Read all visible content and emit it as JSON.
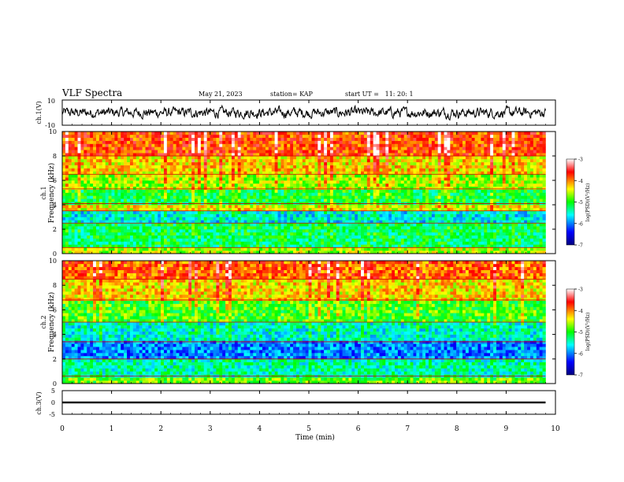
{
  "header": {
    "title": "VLF Spectra",
    "date": "May 21, 2023",
    "station": "station= KAP",
    "start_ut": "start UT =   11: 20: 1"
  },
  "chart_data": [
    {
      "type": "line",
      "panel": "ch1-waveform",
      "ylabel": "ch.1(V)",
      "ylim": [
        -10,
        10
      ],
      "yticks": [
        "10",
        "-10"
      ],
      "description_values": "noisy waveform oscillating roughly between -5 and +5 V over 0-9.8 min",
      "x_range": [
        0,
        9.8
      ]
    },
    {
      "type": "heatmap",
      "panel": "ch1-spectrogram",
      "ylabel": "ch.1 Frequency (kHz)",
      "ylim": [
        0,
        10
      ],
      "yticks": [
        "0",
        "2",
        "4",
        "6",
        "8",
        "10"
      ],
      "x_range": [
        0,
        9.8
      ],
      "colorbar": {
        "label": "log(PSD)(V²/Hz)",
        "range": [
          -7,
          -3
        ],
        "ticks": [
          "-3",
          "-4",
          "-5",
          "-6",
          "-7"
        ]
      },
      "bands_khz": [
        {
          "from": 0,
          "to": 0.5,
          "level": -4.6
        },
        {
          "from": 0.5,
          "to": 2.5,
          "level": -5.2
        },
        {
          "from": 2.5,
          "to": 3.5,
          "level": -5.6
        },
        {
          "from": 3.5,
          "to": 4.1,
          "level": -4.4
        },
        {
          "from": 4.1,
          "to": 5.3,
          "level": -5.1
        },
        {
          "from": 5.3,
          "to": 6.5,
          "level": -4.6
        },
        {
          "from": 6.5,
          "to": 8.0,
          "level": -4.3
        },
        {
          "from": 8.0,
          "to": 10.0,
          "level": -3.8
        }
      ]
    },
    {
      "type": "heatmap",
      "panel": "ch2-spectrogram",
      "ylabel": "ch.2 Frequency (kHz)",
      "ylim": [
        0,
        10
      ],
      "yticks": [
        "0",
        "2",
        "4",
        "6",
        "8",
        "10"
      ],
      "x_range": [
        0,
        9.8
      ],
      "colorbar": {
        "label": "log(PSD)(V²/Hz)",
        "range": [
          -7,
          -3
        ],
        "ticks": [
          "-3",
          "-4",
          "-5",
          "-6",
          "-7"
        ]
      },
      "bands_khz": [
        {
          "from": 0,
          "to": 0.6,
          "level": -4.8
        },
        {
          "from": 0.6,
          "to": 2.0,
          "level": -5.4
        },
        {
          "from": 2.0,
          "to": 3.4,
          "level": -6.0
        },
        {
          "from": 3.4,
          "to": 5.0,
          "level": -5.5
        },
        {
          "from": 5.0,
          "to": 6.8,
          "level": -4.9
        },
        {
          "from": 6.8,
          "to": 8.5,
          "level": -4.3
        },
        {
          "from": 8.5,
          "to": 10.0,
          "level": -3.9
        }
      ]
    },
    {
      "type": "line",
      "panel": "ch3-waveform",
      "ylabel": "ch.3(V)",
      "ylim": [
        -5,
        5
      ],
      "yticks": [
        "5",
        "0",
        "-5"
      ],
      "value_band": [
        -0.4,
        0.4
      ],
      "x_range": [
        0,
        9.8
      ]
    }
  ],
  "xaxis": {
    "label": "Time (min)",
    "xlim": [
      0,
      10
    ],
    "ticks": [
      "0",
      "1",
      "2",
      "3",
      "4",
      "5",
      "6",
      "7",
      "8",
      "9",
      "10"
    ]
  },
  "colors": {
    "colormap": [
      "#000080",
      "#0000ff",
      "#00ffff",
      "#00ff00",
      "#ffff00",
      "#ff0000",
      "#ffffff"
    ]
  }
}
